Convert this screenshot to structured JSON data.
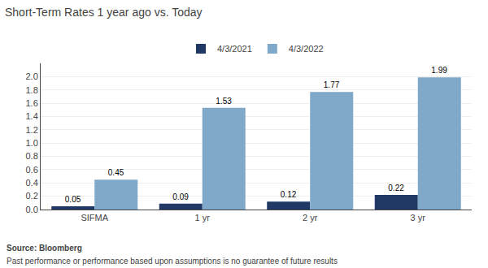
{
  "chart_data": {
    "type": "bar",
    "title": "Short-Term Rates 1 year ago vs. Today",
    "categories": [
      "SIFMA",
      "1 yr",
      "2 yr",
      "3 yr"
    ],
    "series": [
      {
        "name": "4/3/2021",
        "color": "#1f3864",
        "values": [
          0.05,
          0.09,
          0.12,
          0.22
        ]
      },
      {
        "name": "4/3/2022",
        "color": "#7fa8c9",
        "values": [
          0.45,
          1.53,
          1.77,
          1.99
        ]
      }
    ],
    "ylim": [
      0,
      2.2
    ],
    "yticks": [
      {
        "value": 0,
        "label": "0.0"
      },
      0.2,
      0.4,
      0.6,
      0.8,
      {
        "value": 1,
        "label": "1.0"
      },
      1.2,
      1.4,
      1.6,
      1.8,
      {
        "value": 2,
        "label": "2.0"
      }
    ],
    "grid": true,
    "legend": "upper center",
    "data_labels": true,
    "annotations": [
      "Source: Bloomberg",
      "Past performance or performance based upon assumptions is no guarantee of future results"
    ]
  }
}
